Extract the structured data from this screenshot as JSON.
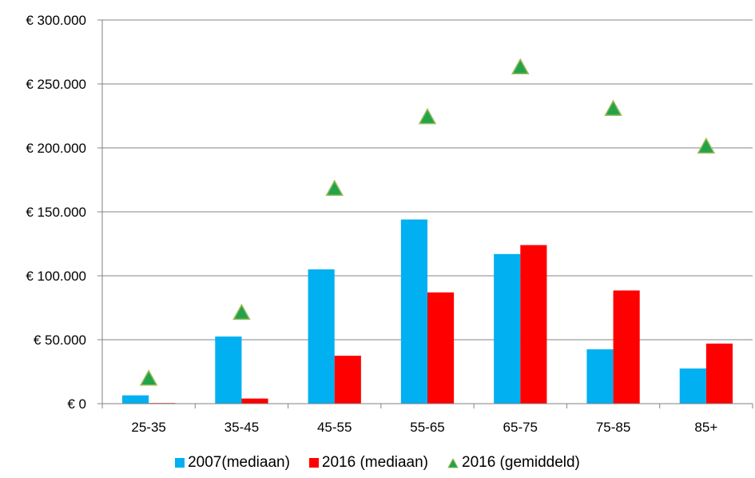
{
  "chart_data": {
    "type": "bar",
    "categories": [
      "25-35",
      "35-45",
      "45-55",
      "55-65",
      "65-75",
      "75-85",
      "85+"
    ],
    "series": [
      {
        "name": "2007(mediaan)",
        "kind": "bar",
        "color": "#00B0F0",
        "values": [
          6500,
          52500,
          105000,
          144000,
          117000,
          42500,
          27500
        ]
      },
      {
        "name": "2016 (mediaan)",
        "kind": "bar",
        "color": "#FF0000",
        "values": [
          500,
          4000,
          37500,
          87000,
          124000,
          88500,
          47000
        ]
      },
      {
        "name": "2016 (gemiddeld)",
        "kind": "marker",
        "color": "#22A34A",
        "values": [
          19500,
          71000,
          168000,
          224000,
          263000,
          230500,
          201000
        ]
      }
    ],
    "y_ticks": [
      "€ 0",
      "€ 50.000",
      "€ 100.000",
      "€ 150.000",
      "€ 200.000",
      "€ 250.000",
      "€ 300.000"
    ],
    "ylim": [
      0,
      300000
    ],
    "grid": true,
    "legend_position": "bottom"
  }
}
